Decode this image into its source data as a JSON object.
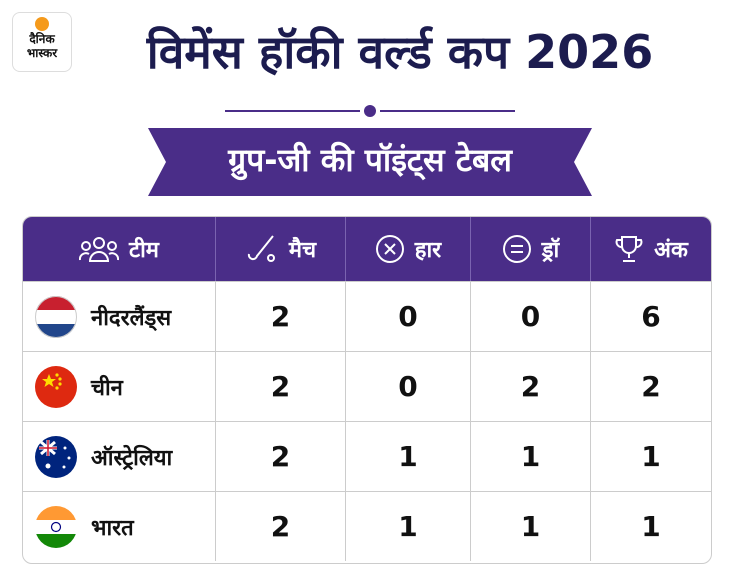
{
  "logo": {
    "line1": "दैनिक",
    "line2": "भास्कर"
  },
  "header": {
    "title": "विमेंस हॉकी वर्ल्ड कप 2026",
    "subtitle": "ग्रुप-जी की पॉइंट्स टेबल"
  },
  "table": {
    "columns": [
      "टीम",
      "मैच",
      "हार",
      "ड्रॉ",
      "अंक"
    ],
    "rows": [
      [
        "नीदरलैंड्स",
        2,
        0,
        0,
        6
      ],
      [
        "चीन",
        2,
        0,
        2,
        2
      ],
      [
        "ऑस्ट्रेलिया",
        2,
        1,
        1,
        1
      ],
      [
        "भारत",
        2,
        1,
        1,
        1
      ]
    ]
  }
}
